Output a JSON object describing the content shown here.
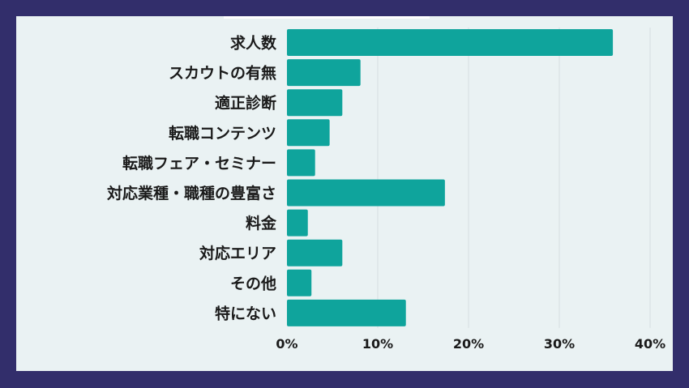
{
  "chart_data": {
    "type": "bar",
    "orientation": "horizontal",
    "categories": [
      "求人数",
      "スカウトの有無",
      "適正診断",
      "転職コンテンツ",
      "転職フェア・セミナー",
      "対応業種・職種の豊富さ",
      "料金",
      "対応エリア",
      "その他",
      "特にない"
    ],
    "values": [
      35.9,
      8.1,
      6.1,
      4.7,
      3.1,
      17.4,
      2.3,
      6.1,
      2.7,
      13.1
    ],
    "xlim": [
      0,
      40
    ],
    "xticks": [
      "0%",
      "10%",
      "20%",
      "30%",
      "40%"
    ],
    "grid": "vertical",
    "bar_color": "#0fa49c",
    "grid_color": "#d6dfe0"
  },
  "colors": {
    "frame_border": "#322e6b",
    "background": "#eaf2f3"
  }
}
